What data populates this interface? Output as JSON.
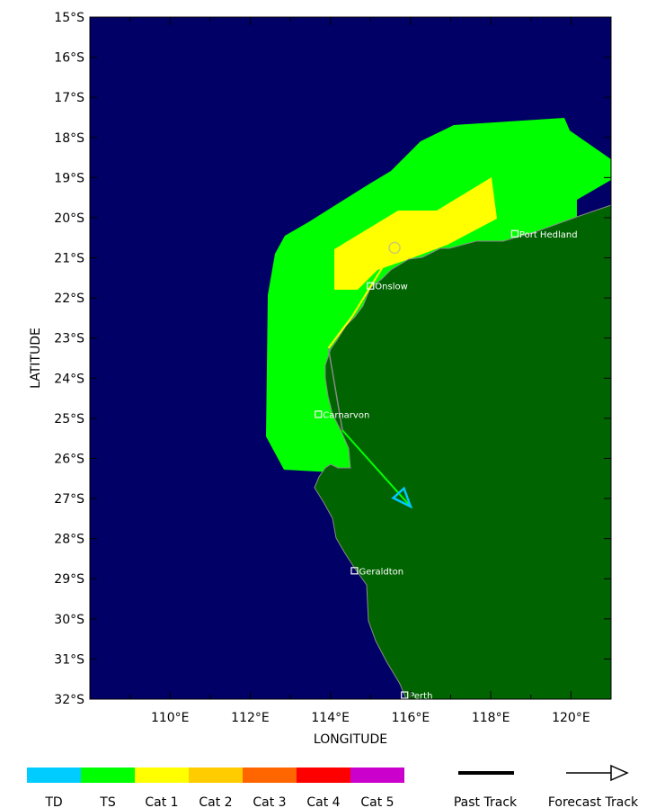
{
  "colors": {
    "ocean": "#000066",
    "land": "#006400",
    "ts_zone": "#00ff00",
    "cat1_zone": "#ffff00",
    "past_track": "#000000",
    "forecast_arrow": "#00c8ff"
  },
  "map": {
    "lon_range": [
      108,
      121
    ],
    "lat_range": [
      -32,
      -15
    ],
    "lon_ticks": [
      {
        "value": 110,
        "label": "110°E"
      },
      {
        "value": 112,
        "label": "112°E"
      },
      {
        "value": 114,
        "label": "114°E"
      },
      {
        "value": 116,
        "label": "116°E"
      },
      {
        "value": 118,
        "label": "118°E"
      },
      {
        "value": 120,
        "label": "120°E"
      }
    ],
    "lat_ticks": [
      {
        "value": -15,
        "label": "15°S"
      },
      {
        "value": -16,
        "label": "16°S"
      },
      {
        "value": -17,
        "label": "17°S"
      },
      {
        "value": -18,
        "label": "18°S"
      },
      {
        "value": -19,
        "label": "19°S"
      },
      {
        "value": -20,
        "label": "20°S"
      },
      {
        "value": -21,
        "label": "21°S"
      },
      {
        "value": -22,
        "label": "22°S"
      },
      {
        "value": -23,
        "label": "23°S"
      },
      {
        "value": -24,
        "label": "24°S"
      },
      {
        "value": -25,
        "label": "25°S"
      },
      {
        "value": -26,
        "label": "26°S"
      },
      {
        "value": -27,
        "label": "27°S"
      },
      {
        "value": -28,
        "label": "28°S"
      },
      {
        "value": -29,
        "label": "29°S"
      },
      {
        "value": -30,
        "label": "30°S"
      },
      {
        "value": -31,
        "label": "31°S"
      },
      {
        "value": -32,
        "label": "32°S"
      }
    ],
    "xlabel": "LONGITUDE",
    "ylabel": "LATITUDE",
    "cities": [
      {
        "name": "Port Hedland",
        "lon": 118.6,
        "lat": -20.4
      },
      {
        "name": "Onslow",
        "lon": 115.0,
        "lat": -21.7
      },
      {
        "name": "Carnarvon",
        "lon": 113.7,
        "lat": -24.9
      },
      {
        "name": "Geraldton",
        "lon": 114.6,
        "lat": -28.8
      },
      {
        "name": "Perth",
        "lon": 115.85,
        "lat": -31.9
      }
    ],
    "track": [
      {
        "lon": 115.6,
        "lat": -20.75
      },
      {
        "lon": 114.55,
        "lat": -22.45
      },
      {
        "lon": 113.95,
        "lat": -23.25
      },
      {
        "lon": 114.3,
        "lat": -25.3
      },
      {
        "lon": 116.0,
        "lat": -27.2
      }
    ]
  },
  "legend": {
    "categories": [
      {
        "label": "TD",
        "color": "#00ccff"
      },
      {
        "label": "TS",
        "color": "#00ff00"
      },
      {
        "label": "Cat 1",
        "color": "#ffff00"
      },
      {
        "label": "Cat 2",
        "color": "#ffcc00"
      },
      {
        "label": "Cat 3",
        "color": "#ff6600"
      },
      {
        "label": "Cat 4",
        "color": "#ff0000"
      },
      {
        "label": "Cat 5",
        "color": "#cc00cc"
      }
    ],
    "past_track_label": "Past Track",
    "forecast_track_label": "Forecast Track"
  }
}
